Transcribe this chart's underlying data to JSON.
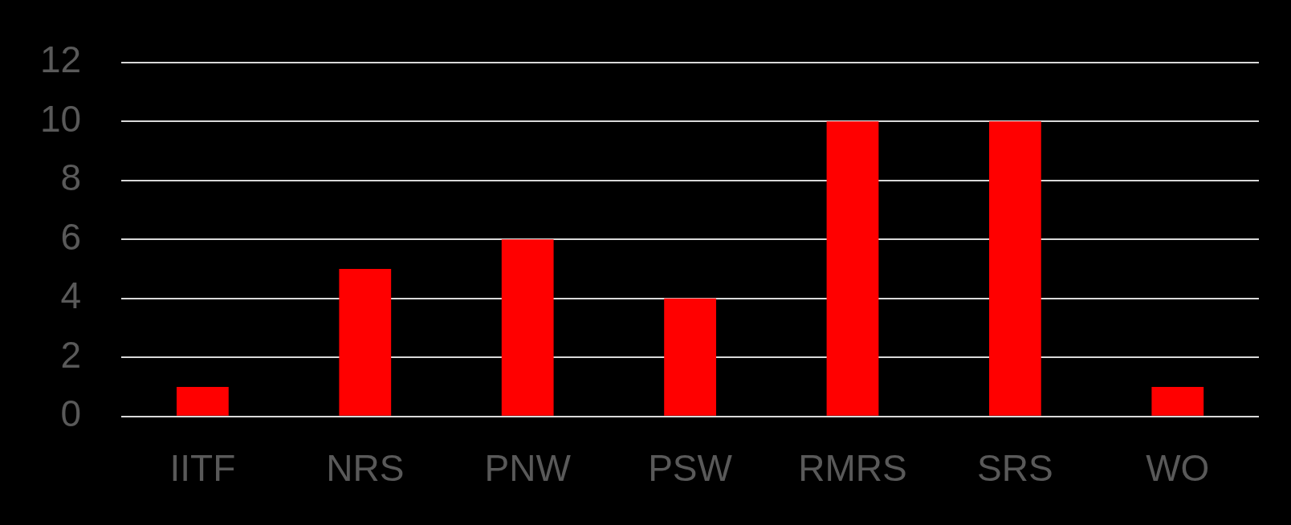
{
  "chart_data": {
    "type": "bar",
    "categories": [
      "IITF",
      "NRS",
      "PNW",
      "PSW",
      "RMRS",
      "SRS",
      "WO"
    ],
    "values": [
      1,
      5,
      6,
      4,
      10,
      10,
      1
    ],
    "color": "#ff0000",
    "ylim": [
      0,
      12
    ],
    "yticks": [
      0,
      2,
      4,
      6,
      8,
      10,
      12
    ],
    "grid": "y"
  }
}
